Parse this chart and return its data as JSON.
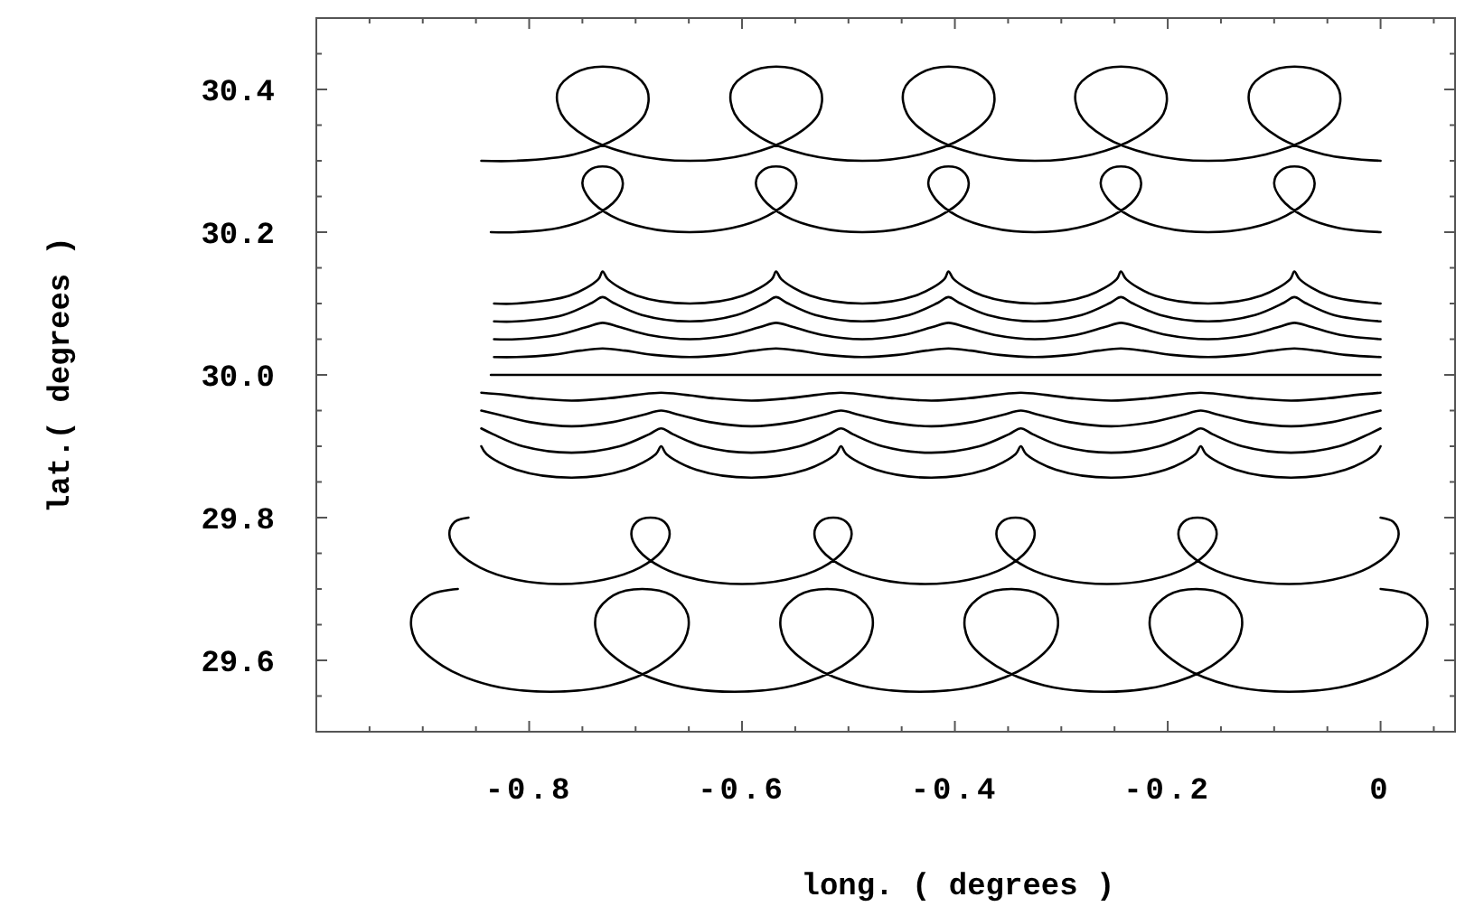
{
  "chart_data": {
    "type": "line",
    "xlabel": "long. ( degrees )",
    "ylabel": "lat.( degrees )",
    "xlim": [
      -1.0,
      0.07
    ],
    "ylim": [
      29.5,
      30.5
    ],
    "xticks": [
      {
        "value": -0.95,
        "label": null
      },
      {
        "value": -0.9,
        "label": null
      },
      {
        "value": -0.85,
        "label": null
      },
      -0.8,
      {
        "value": -0.75,
        "label": null
      },
      {
        "value": -0.7,
        "label": null
      },
      {
        "value": -0.65,
        "label": null
      },
      -0.6,
      {
        "value": -0.55,
        "label": null
      },
      {
        "value": -0.5,
        "label": null
      },
      {
        "value": -0.45,
        "label": null
      },
      -0.4,
      {
        "value": -0.35,
        "label": null
      },
      {
        "value": -0.3,
        "label": null
      },
      {
        "value": -0.25,
        "label": null
      },
      -0.2,
      {
        "value": -0.15,
        "label": null
      },
      {
        "value": -0.1,
        "label": null
      },
      {
        "value": -0.05,
        "label": null
      },
      0,
      {
        "value": 0.05,
        "label": null
      }
    ],
    "yticks": [
      {
        "value": 29.55,
        "label": null
      },
      29.6,
      {
        "value": 29.65,
        "label": null
      },
      {
        "value": 29.7,
        "label": null
      },
      {
        "value": 29.75,
        "label": null
      },
      29.8,
      {
        "value": 29.85,
        "label": null
      },
      {
        "value": 29.9,
        "label": null
      },
      {
        "value": 29.95,
        "label": null
      },
      {
        "value": 30.0,
        "label": "30.0"
      },
      {
        "value": 30.05,
        "label": null
      },
      {
        "value": 30.1,
        "label": null
      },
      {
        "value": 30.15,
        "label": null
      },
      30.2,
      {
        "value": 30.25,
        "label": null
      },
      {
        "value": 30.3,
        "label": null
      },
      {
        "value": 30.35,
        "label": null
      },
      30.4,
      {
        "value": 30.45,
        "label": null
      }
    ],
    "series": [
      {
        "color": "#000000",
        "x": [
          -0.845,
          -0.812,
          -0.758,
          -0.716,
          -0.691,
          -0.689,
          -0.704,
          -0.731,
          -0.757,
          -0.773,
          -0.77,
          -0.746,
          -0.703,
          -0.649,
          -0.595,
          -0.553,
          -0.528,
          -0.526,
          -0.541,
          -0.568,
          -0.594,
          -0.61,
          -0.607,
          -0.583,
          -0.54,
          -0.487,
          -0.433,
          -0.391,
          -0.366,
          -0.364,
          -0.379,
          -0.406,
          -0.432,
          -0.448,
          -0.445,
          -0.421,
          -0.378,
          -0.325,
          -0.271,
          -0.229,
          -0.204,
          -0.202,
          -0.217,
          -0.244,
          -0.27,
          -0.286,
          -0.283,
          -0.259,
          -0.216,
          -0.162,
          -0.108,
          -0.066,
          -0.041,
          -0.039,
          -0.054,
          -0.081,
          -0.107,
          -0.123,
          -0.12,
          -0.096,
          -0.053,
          0
        ],
        "values": [
          30.3,
          30.3,
          30.309,
          30.333,
          30.366,
          30.399,
          30.423,
          30.432,
          30.423,
          30.399,
          30.366,
          30.333,
          30.309,
          30.3,
          30.309,
          30.333,
          30.366,
          30.399,
          30.423,
          30.432,
          30.423,
          30.399,
          30.366,
          30.333,
          30.309,
          30.3,
          30.309,
          30.333,
          30.366,
          30.399,
          30.423,
          30.432,
          30.423,
          30.399,
          30.366,
          30.333,
          30.309,
          30.3,
          30.309,
          30.333,
          30.366,
          30.399,
          30.423,
          30.432,
          30.423,
          30.399,
          30.366,
          30.333,
          30.309,
          30.3,
          30.309,
          30.333,
          30.366,
          30.399,
          30.423,
          30.432,
          30.423,
          30.399,
          30.366,
          30.333,
          30.309,
          30.3
        ]
      },
      {
        "color": "#000000",
        "x": [
          -0.836,
          -0.812,
          -0.772,
          -0.739,
          -0.718,
          -0.712,
          -0.718,
          -0.731,
          -0.744,
          -0.75,
          -0.743,
          -0.723,
          -0.69,
          -0.649,
          -0.609,
          -0.576,
          -0.555,
          -0.549,
          -0.555,
          -0.568,
          -0.581,
          -0.587,
          -0.58,
          -0.56,
          -0.527,
          -0.487,
          -0.447,
          -0.414,
          -0.393,
          -0.387,
          -0.393,
          -0.406,
          -0.419,
          -0.425,
          -0.418,
          -0.398,
          -0.365,
          -0.325,
          -0.285,
          -0.252,
          -0.231,
          -0.225,
          -0.231,
          -0.244,
          -0.257,
          -0.263,
          -0.256,
          -0.236,
          -0.203,
          -0.162,
          -0.122,
          -0.089,
          -0.068,
          -0.062,
          -0.068,
          -0.081,
          -0.094,
          -0.1,
          -0.093,
          -0.073,
          -0.04,
          0
        ],
        "values": [
          30.2,
          30.2,
          30.206,
          30.223,
          30.246,
          30.269,
          30.286,
          30.292,
          30.286,
          30.269,
          30.246,
          30.223,
          30.206,
          30.2,
          30.206,
          30.223,
          30.246,
          30.269,
          30.286,
          30.292,
          30.286,
          30.269,
          30.246,
          30.223,
          30.206,
          30.2,
          30.206,
          30.223,
          30.246,
          30.269,
          30.286,
          30.292,
          30.286,
          30.269,
          30.246,
          30.223,
          30.206,
          30.2,
          30.206,
          30.223,
          30.246,
          30.269,
          30.286,
          30.292,
          30.286,
          30.269,
          30.246,
          30.223,
          30.206,
          30.2,
          30.206,
          30.223,
          30.246,
          30.269,
          30.286,
          30.292,
          30.286,
          30.269,
          30.246,
          30.223,
          30.206,
          30.2
        ]
      },
      {
        "color": "#000000",
        "x": [
          -0.833,
          -0.812,
          -0.762,
          -0.735,
          -0.731,
          -0.726,
          -0.699,
          -0.649,
          -0.599,
          -0.572,
          -0.568,
          -0.563,
          -0.536,
          -0.487,
          -0.437,
          -0.41,
          -0.406,
          -0.401,
          -0.374,
          -0.325,
          -0.275,
          -0.248,
          -0.244,
          -0.239,
          -0.212,
          -0.162,
          -0.112,
          -0.085,
          -0.081,
          -0.076,
          -0.049,
          0
        ],
        "values": [
          30.1,
          30.1,
          30.111,
          30.134,
          30.145,
          30.134,
          30.111,
          30.1,
          30.111,
          30.134,
          30.145,
          30.134,
          30.111,
          30.1,
          30.111,
          30.134,
          30.145,
          30.134,
          30.111,
          30.1,
          30.111,
          30.134,
          30.145,
          30.134,
          30.111,
          30.1,
          30.111,
          30.134,
          30.145,
          30.134,
          30.111,
          30.1
        ]
      },
      {
        "color": "#000000",
        "x": [
          -0.833,
          -0.812,
          -0.768,
          -0.741,
          -0.731,
          -0.721,
          -0.694,
          -0.649,
          -0.605,
          -0.578,
          -0.568,
          -0.558,
          -0.531,
          -0.487,
          -0.443,
          -0.416,
          -0.406,
          -0.396,
          -0.369,
          -0.325,
          -0.281,
          -0.254,
          -0.244,
          -0.234,
          -0.207,
          -0.162,
          -0.118,
          -0.091,
          -0.081,
          -0.071,
          -0.044,
          0
        ],
        "values": [
          30.075,
          30.075,
          30.084,
          30.101,
          30.109,
          30.101,
          30.084,
          30.075,
          30.084,
          30.101,
          30.109,
          30.101,
          30.084,
          30.075,
          30.084,
          30.101,
          30.109,
          30.101,
          30.084,
          30.075,
          30.084,
          30.101,
          30.109,
          30.101,
          30.084,
          30.075,
          30.084,
          30.101,
          30.109,
          30.101,
          30.084,
          30.075
        ]
      },
      {
        "color": "#000000",
        "x": [
          -0.833,
          -0.812,
          -0.773,
          -0.746,
          -0.731,
          -0.715,
          -0.688,
          -0.649,
          -0.61,
          -0.583,
          -0.568,
          -0.552,
          -0.525,
          -0.487,
          -0.448,
          -0.421,
          -0.406,
          -0.39,
          -0.363,
          -0.325,
          -0.286,
          -0.259,
          -0.244,
          -0.228,
          -0.201,
          -0.162,
          -0.123,
          -0.096,
          -0.081,
          -0.065,
          -0.038,
          0
        ],
        "values": [
          30.05,
          30.05,
          30.056,
          30.067,
          30.073,
          30.067,
          30.056,
          30.05,
          30.056,
          30.067,
          30.073,
          30.067,
          30.056,
          30.05,
          30.056,
          30.067,
          30.073,
          30.067,
          30.056,
          30.05,
          30.056,
          30.067,
          30.073,
          30.067,
          30.056,
          30.05,
          30.056,
          30.067,
          30.073,
          30.067,
          30.056,
          30.05
        ]
      },
      {
        "color": "#000000",
        "x": [
          -0.833,
          -0.812,
          -0.779,
          -0.752,
          -0.731,
          -0.71,
          -0.683,
          -0.649,
          -0.616,
          -0.589,
          -0.568,
          -0.547,
          -0.52,
          -0.487,
          -0.454,
          -0.427,
          -0.406,
          -0.385,
          -0.358,
          -0.325,
          -0.292,
          -0.265,
          -0.244,
          -0.223,
          -0.196,
          -0.162,
          -0.129,
          -0.102,
          -0.081,
          -0.06,
          -0.033,
          0
        ],
        "values": [
          30.025,
          30.025,
          30.028,
          30.034,
          30.037,
          30.034,
          30.028,
          30.025,
          30.028,
          30.034,
          30.037,
          30.034,
          30.028,
          30.025,
          30.028,
          30.034,
          30.037,
          30.034,
          30.028,
          30.025,
          30.028,
          30.034,
          30.037,
          30.034,
          30.028,
          30.025,
          30.028,
          30.034,
          30.037,
          30.034,
          30.028,
          30.025
        ]
      },
      {
        "color": "#000000",
        "x": [
          -0.836,
          0
        ],
        "values": [
          30.0,
          30.0
        ]
      },
      {
        "color": "#000000",
        "x": [
          -0.845,
          -0.822,
          -0.794,
          -0.76,
          -0.727,
          -0.699,
          -0.676,
          -0.653,
          -0.625,
          -0.591,
          -0.558,
          -0.53,
          -0.507,
          -0.484,
          -0.456,
          -0.422,
          -0.389,
          -0.361,
          -0.338,
          -0.315,
          -0.287,
          -0.253,
          -0.22,
          -0.192,
          -0.169,
          -0.146,
          -0.118,
          -0.084,
          -0.051,
          -0.023,
          0
        ],
        "values": [
          29.975,
          29.972,
          29.967,
          29.964,
          29.967,
          29.972,
          29.975,
          29.972,
          29.967,
          29.964,
          29.967,
          29.972,
          29.975,
          29.972,
          29.967,
          29.964,
          29.967,
          29.972,
          29.975,
          29.972,
          29.967,
          29.964,
          29.967,
          29.972,
          29.975,
          29.972,
          29.967,
          29.964,
          29.967,
          29.972,
          29.975
        ]
      },
      {
        "color": "#000000",
        "x": [
          -0.845,
          -0.828,
          -0.8,
          -0.76,
          -0.721,
          -0.693,
          -0.676,
          -0.659,
          -0.631,
          -0.591,
          -0.552,
          -0.524,
          -0.507,
          -0.49,
          -0.462,
          -0.422,
          -0.383,
          -0.355,
          -0.338,
          -0.321,
          -0.293,
          -0.253,
          -0.214,
          -0.186,
          -0.169,
          -0.152,
          -0.124,
          -0.084,
          -0.045,
          -0.017,
          0
        ],
        "values": [
          29.95,
          29.944,
          29.934,
          29.928,
          29.934,
          29.944,
          29.95,
          29.944,
          29.934,
          29.928,
          29.934,
          29.944,
          29.95,
          29.944,
          29.934,
          29.928,
          29.934,
          29.944,
          29.95,
          29.944,
          29.934,
          29.928,
          29.934,
          29.944,
          29.95,
          29.944,
          29.934,
          29.928,
          29.934,
          29.944,
          29.95
        ]
      },
      {
        "color": "#000000",
        "x": [
          -0.845,
          -0.834,
          -0.806,
          -0.76,
          -0.715,
          -0.687,
          -0.676,
          -0.665,
          -0.637,
          -0.591,
          -0.546,
          -0.518,
          -0.507,
          -0.496,
          -0.468,
          -0.422,
          -0.377,
          -0.349,
          -0.338,
          -0.327,
          -0.299,
          -0.253,
          -0.208,
          -0.18,
          -0.169,
          -0.158,
          -0.13,
          -0.084,
          -0.039,
          -0.011,
          0
        ],
        "values": [
          29.925,
          29.917,
          29.9,
          29.891,
          29.9,
          29.917,
          29.925,
          29.917,
          29.9,
          29.891,
          29.9,
          29.917,
          29.925,
          29.917,
          29.9,
          29.891,
          29.9,
          29.917,
          29.925,
          29.917,
          29.9,
          29.891,
          29.9,
          29.917,
          29.925,
          29.917,
          29.9,
          29.891,
          29.9,
          29.917,
          29.925
        ]
      },
      {
        "color": "#000000",
        "x": [
          -0.845,
          -0.84,
          -0.812,
          -0.76,
          -0.709,
          -0.681,
          -0.676,
          -0.671,
          -0.643,
          -0.591,
          -0.54,
          -0.512,
          -0.507,
          -0.502,
          -0.474,
          -0.422,
          -0.371,
          -0.343,
          -0.338,
          -0.333,
          -0.305,
          -0.253,
          -0.202,
          -0.174,
          -0.169,
          -0.164,
          -0.136,
          -0.084,
          -0.033,
          -0.005,
          0
        ],
        "values": [
          29.9,
          29.889,
          29.867,
          29.856,
          29.867,
          29.889,
          29.9,
          29.889,
          29.867,
          29.856,
          29.867,
          29.889,
          29.9,
          29.889,
          29.867,
          29.856,
          29.867,
          29.889,
          29.9,
          29.889,
          29.867,
          29.856,
          29.867,
          29.889,
          29.9,
          29.889,
          29.867,
          29.856,
          29.867,
          29.889,
          29.9
        ]
      },
      {
        "color": "#000000",
        "x": [
          -0.857,
          -0.87,
          -0.875,
          -0.868,
          -0.846,
          -0.812,
          -0.771,
          -0.73,
          -0.696,
          -0.675,
          -0.668,
          -0.673,
          -0.686,
          -0.699,
          -0.704,
          -0.697,
          -0.675,
          -0.641,
          -0.6,
          -0.559,
          -0.525,
          -0.504,
          -0.497,
          -0.502,
          -0.514,
          -0.527,
          -0.532,
          -0.525,
          -0.503,
          -0.469,
          -0.428,
          -0.387,
          -0.353,
          -0.332,
          -0.325,
          -0.33,
          -0.343,
          -0.356,
          -0.361,
          -0.354,
          -0.332,
          -0.298,
          -0.257,
          -0.216,
          -0.182,
          -0.161,
          -0.154,
          -0.159,
          -0.172,
          -0.185,
          -0.19,
          -0.183,
          -0.161,
          -0.127,
          -0.086,
          -0.045,
          -0.011,
          0.01,
          0.017,
          0.012,
          0
        ],
        "values": [
          29.8,
          29.794,
          29.777,
          29.754,
          29.73,
          29.713,
          29.707,
          29.713,
          29.73,
          29.754,
          29.777,
          29.794,
          29.8,
          29.794,
          29.777,
          29.754,
          29.73,
          29.713,
          29.707,
          29.713,
          29.73,
          29.754,
          29.777,
          29.794,
          29.8,
          29.794,
          29.777,
          29.754,
          29.73,
          29.713,
          29.707,
          29.713,
          29.73,
          29.754,
          29.777,
          29.794,
          29.8,
          29.794,
          29.777,
          29.754,
          29.73,
          29.713,
          29.707,
          29.713,
          29.73,
          29.754,
          29.777,
          29.794,
          29.8,
          29.794,
          29.777,
          29.754,
          29.73,
          29.713,
          29.707,
          29.713,
          29.73,
          29.754,
          29.777,
          29.794,
          29.8
        ]
      },
      {
        "color": "#000000",
        "x": [
          -0.867,
          -0.894,
          -0.91,
          -0.907,
          -0.881,
          -0.836,
          -0.78,
          -0.724,
          -0.679,
          -0.654,
          -0.651,
          -0.666,
          -0.694,
          -0.721,
          -0.737,
          -0.734,
          -0.708,
          -0.663,
          -0.607,
          -0.551,
          -0.506,
          -0.481,
          -0.478,
          -0.493,
          -0.52,
          -0.547,
          -0.563,
          -0.56,
          -0.534,
          -0.489,
          -0.433,
          -0.377,
          -0.332,
          -0.307,
          -0.304,
          -0.319,
          -0.347,
          -0.374,
          -0.39,
          -0.387,
          -0.361,
          -0.316,
          -0.26,
          -0.204,
          -0.159,
          -0.134,
          -0.131,
          -0.146,
          -0.173,
          -0.2,
          -0.216,
          -0.213,
          -0.187,
          -0.142,
          -0.086,
          -0.03,
          0.015,
          0.04,
          0.043,
          0.028,
          0
        ],
        "values": [
          29.7,
          29.691,
          29.664,
          29.628,
          29.592,
          29.565,
          29.556,
          29.565,
          29.592,
          29.628,
          29.664,
          29.691,
          29.7,
          29.691,
          29.664,
          29.628,
          29.592,
          29.565,
          29.556,
          29.565,
          29.592,
          29.628,
          29.664,
          29.691,
          29.7,
          29.691,
          29.664,
          29.628,
          29.592,
          29.565,
          29.556,
          29.565,
          29.592,
          29.628,
          29.664,
          29.691,
          29.7,
          29.691,
          29.664,
          29.628,
          29.592,
          29.565,
          29.556,
          29.565,
          29.592,
          29.628,
          29.664,
          29.691,
          29.7,
          29.691,
          29.664,
          29.628,
          29.592,
          29.565,
          29.556,
          29.565,
          29.592,
          29.628,
          29.664,
          29.691,
          29.7
        ]
      }
    ]
  }
}
